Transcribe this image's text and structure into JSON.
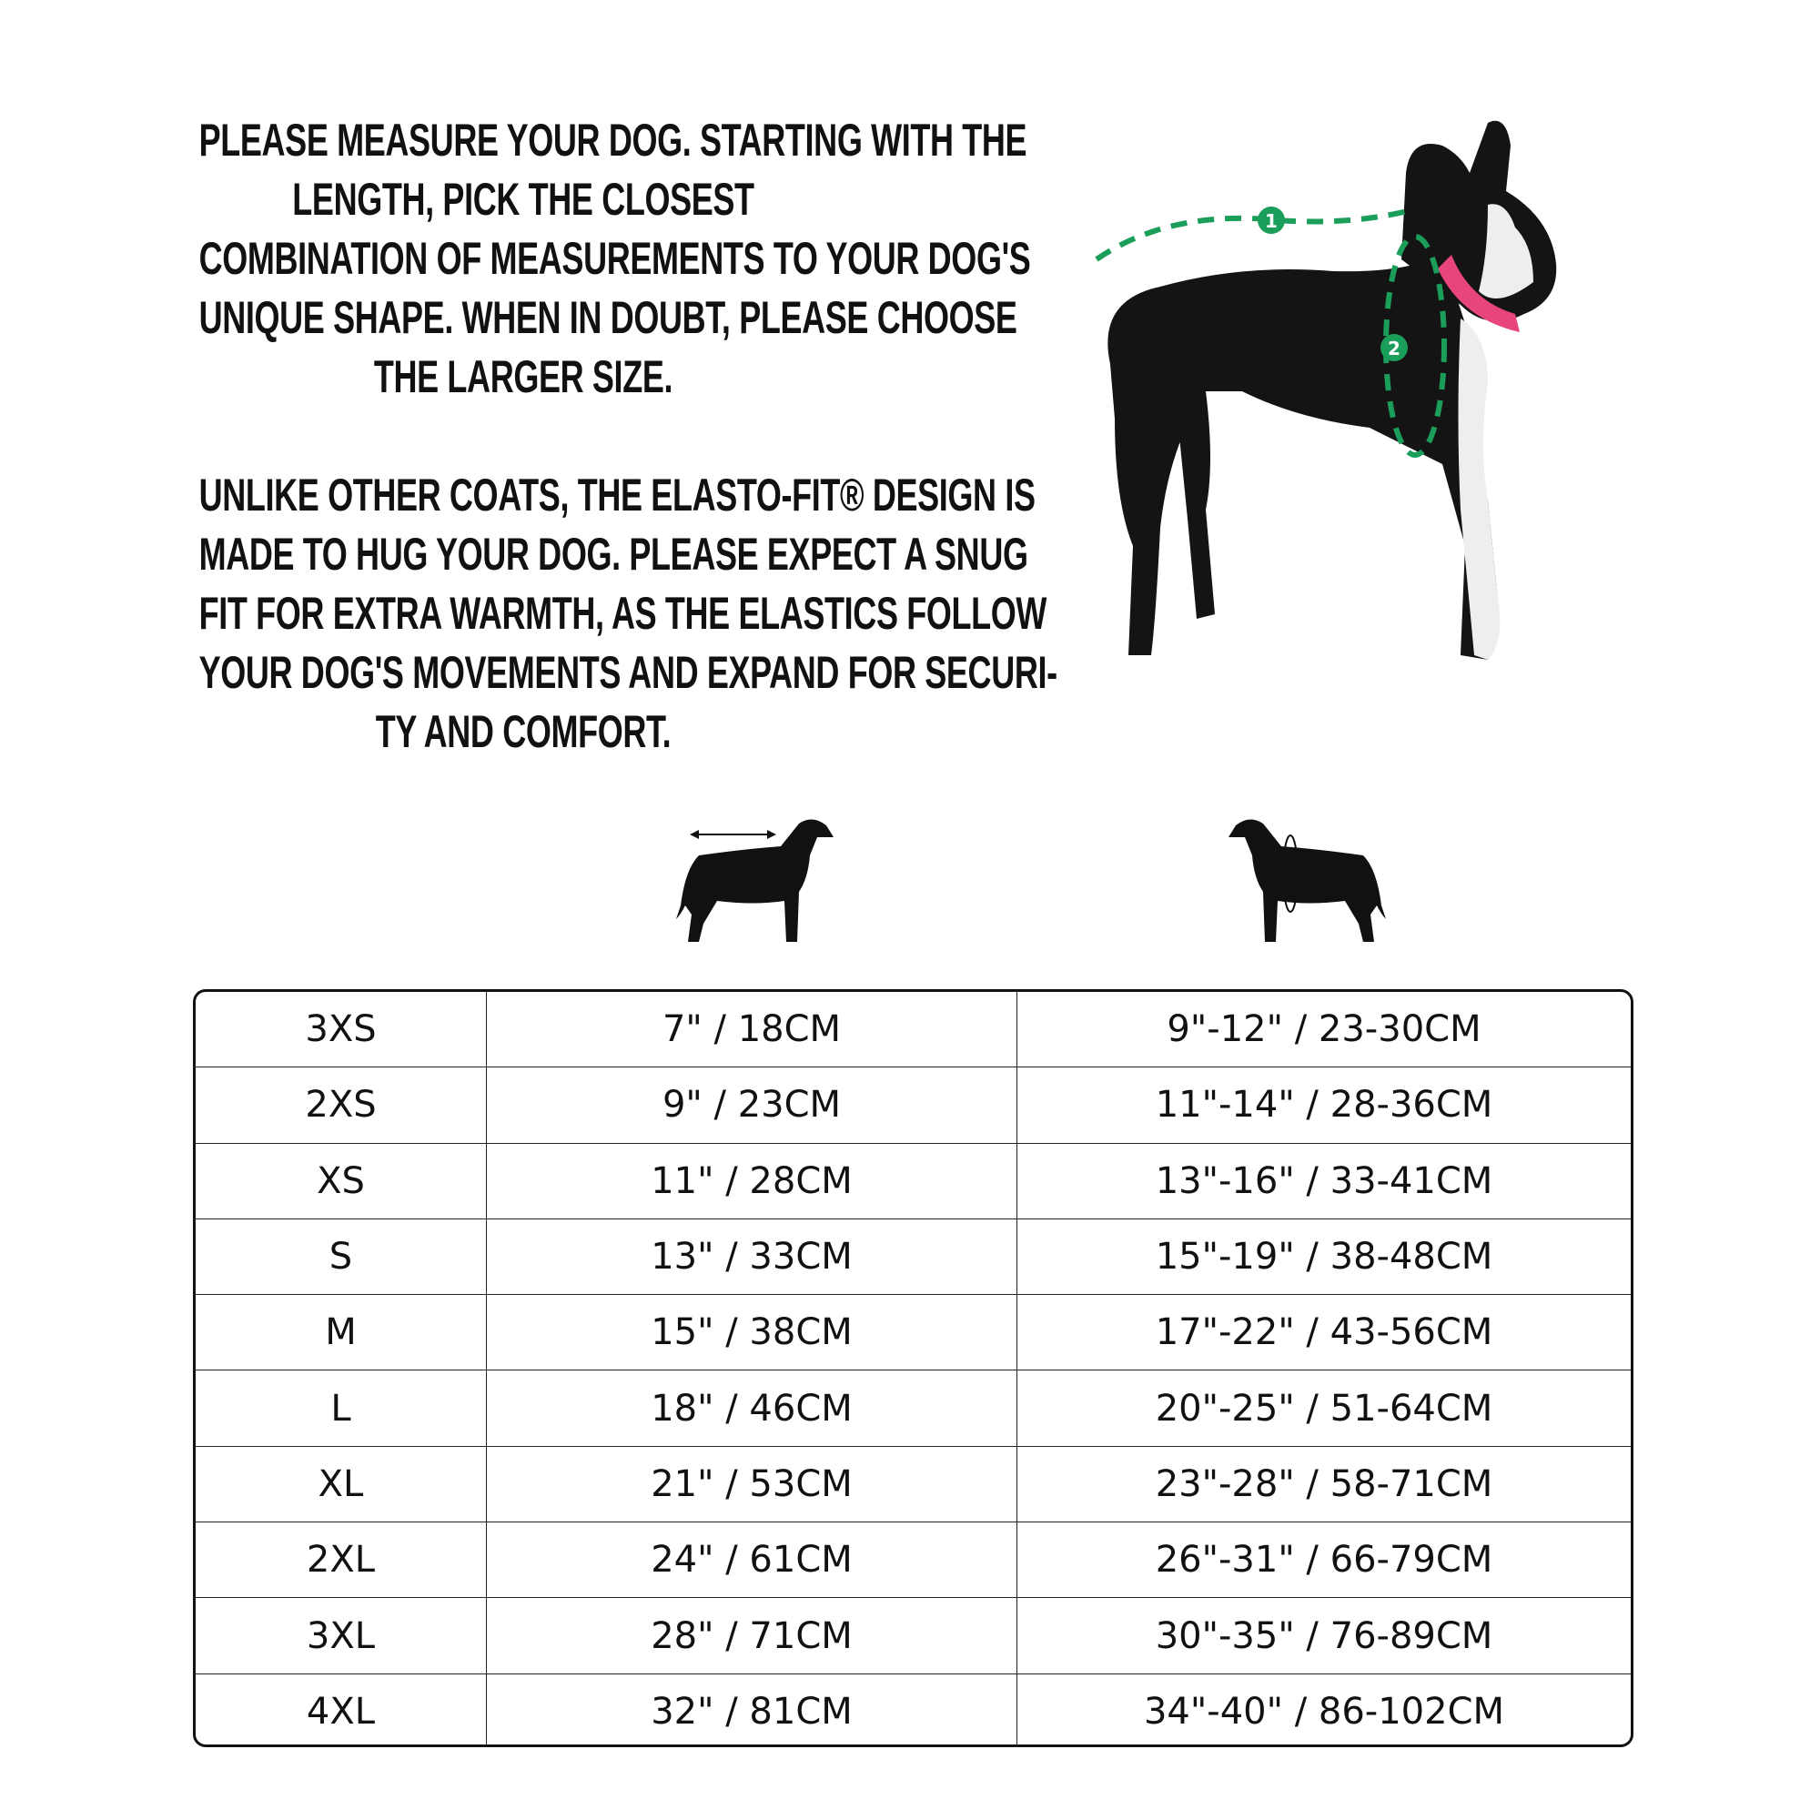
{
  "instructions": {
    "paragraph1": [
      "PLEASE MEASURE YOUR DOG. STARTING WITH THE",
      "LENGTH, PICK THE CLOSEST",
      "COMBINATION OF MEASUREMENTS TO YOUR DOG'S",
      "UNIQUE SHAPE. WHEN IN DOUBT, PLEASE CHOOSE",
      "THE LARGER SIZE."
    ],
    "paragraph2": [
      "UNLIKE OTHER COATS, THE ELASTO-FIT® DESIGN IS",
      "MADE TO HUG YOUR DOG. PLEASE EXPECT A SNUG",
      "FIT FOR EXTRA WARMTH, AS THE ELASTICS FOLLOW",
      "YOUR DOG'S MOVEMENTS AND EXPAND FOR SECURI-",
      "TY AND COMFORT."
    ]
  },
  "photo": {
    "markers": [
      "1",
      "2"
    ],
    "marker_color": "#1a9e5a",
    "collar_color": "#e8457c"
  },
  "column_icons": [
    "dog-length-icon",
    "dog-chest-icon"
  ],
  "size_table": {
    "rows": [
      [
        "3XS",
        "7\" / 18CM",
        "9\"-12\" / 23-30CM"
      ],
      [
        "2XS",
        "9\" / 23CM",
        "11\"-14\" / 28-36CM"
      ],
      [
        "XS",
        "11\" / 28CM",
        "13\"-16\" / 33-41CM"
      ],
      [
        "S",
        "13\" / 33CM",
        "15\"-19\" / 38-48CM"
      ],
      [
        "M",
        "15\" / 38CM",
        "17\"-22\" / 43-56CM"
      ],
      [
        "L",
        "18\" / 46CM",
        "20\"-25\" / 51-64CM"
      ],
      [
        "XL",
        "21\" / 53CM",
        "23\"-28\" / 58-71CM"
      ],
      [
        "2XL",
        "24\" / 61CM",
        "26\"-31\" / 66-79CM"
      ],
      [
        "3XL",
        "28\" / 71CM",
        "30\"-35\" / 76-89CM"
      ],
      [
        "4XL",
        "32\" / 81CM",
        "34\"-40\" / 86-102CM"
      ]
    ]
  }
}
